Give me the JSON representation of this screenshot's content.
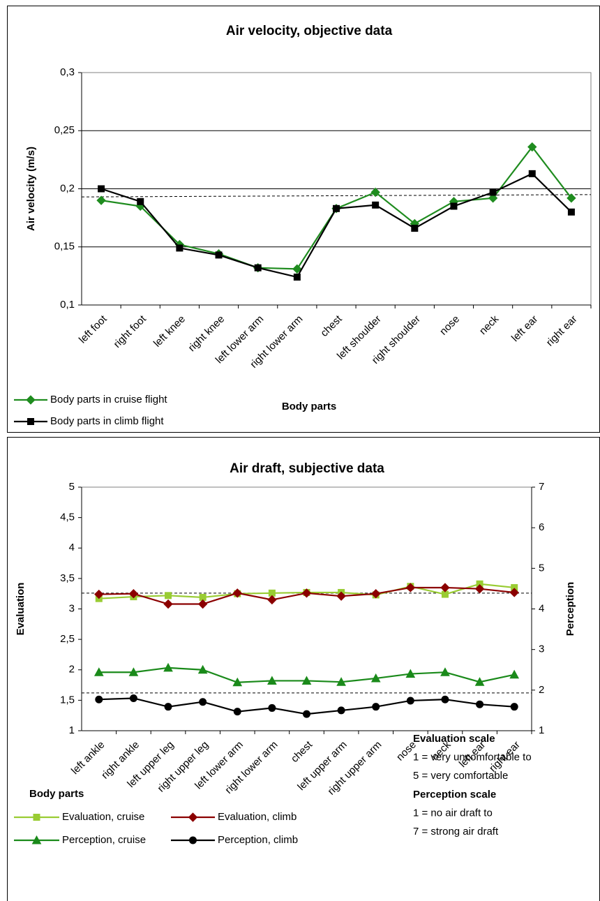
{
  "chart_data": [
    {
      "type": "line",
      "title": "Air velocity, objective data",
      "x_label": "Body parts",
      "y_label": "Air velocity (m/s)",
      "categories": [
        "left foot",
        "right foot",
        "left knee",
        "right knee",
        "left lower arm",
        "right lower arm",
        "chest",
        "left shoulder",
        "right shoulder",
        "nose",
        "neck",
        "left ear",
        "right ear"
      ],
      "series": [
        {
          "name": "Body parts in cruise flight",
          "color": "#1f8c1f",
          "marker": "diamond",
          "values": [
            0.19,
            0.185,
            0.152,
            0.144,
            0.132,
            0.131,
            0.183,
            0.197,
            0.17,
            0.189,
            0.192,
            0.236,
            0.192
          ]
        },
        {
          "name": "Body parts in climb flight",
          "color": "#000000",
          "marker": "square",
          "values": [
            0.2,
            0.189,
            0.149,
            0.143,
            0.132,
            0.124,
            0.183,
            0.186,
            0.166,
            0.185,
            0.197,
            0.213,
            0.18
          ]
        }
      ],
      "ylim": [
        0.1,
        0.3
      ],
      "yticks": [
        {
          "value": 0.1,
          "label": "0,1"
        },
        {
          "value": 0.15,
          "label": "0,15"
        },
        {
          "value": 0.2,
          "label": "0,2"
        },
        {
          "value": 0.25,
          "label": "0,25"
        },
        {
          "value": 0.3,
          "label": "0,3"
        }
      ],
      "grid": true,
      "reference_lines": [
        {
          "axis": "y",
          "values": [
            0.193,
            0.195
          ]
        }
      ]
    },
    {
      "type": "line",
      "title": "Air draft, subjective data",
      "x_label": "Body parts",
      "y_label": "Evaluation",
      "y2_label": "Perception",
      "categories": [
        "left ankle",
        "right ankle",
        "left upper leg",
        "right upper leg",
        "left lower arm",
        "right lower arm",
        "chest",
        "left upper arm",
        "right upper arm",
        "nose",
        "neck",
        "left ear",
        "right ear"
      ],
      "series": [
        {
          "name": "Evaluation, cruise",
          "color": "#99cc33",
          "marker": "square",
          "values": [
            3.17,
            3.2,
            3.22,
            3.19,
            3.25,
            3.26,
            3.27,
            3.27,
            3.23,
            3.37,
            3.24,
            3.41,
            3.35
          ]
        },
        {
          "name": "Evaluation, climb",
          "color": "#8b0000",
          "marker": "diamond",
          "values": [
            3.24,
            3.25,
            3.08,
            3.08,
            3.26,
            3.15,
            3.26,
            3.21,
            3.25,
            3.35,
            3.35,
            3.33,
            3.27
          ]
        },
        {
          "name": "Perception, cruise",
          "color": "#1a8a1a",
          "marker": "triangle",
          "axis": "y2",
          "values": [
            2.44,
            2.44,
            2.55,
            2.5,
            2.19,
            2.23,
            2.23,
            2.2,
            2.29,
            2.4,
            2.44,
            2.2,
            2.38
          ]
        },
        {
          "name": "Perception, climb",
          "color": "#000000",
          "marker": "circle",
          "axis": "y2",
          "values": [
            1.77,
            1.8,
            1.59,
            1.71,
            1.47,
            1.56,
            1.41,
            1.5,
            1.59,
            1.74,
            1.77,
            1.65,
            1.59
          ]
        }
      ],
      "ylim": [
        1,
        5
      ],
      "yticks": [
        1,
        {
          "value": 1.5,
          "label": "1,5"
        },
        2,
        {
          "value": 2.5,
          "label": "2,5"
        },
        3,
        {
          "value": 3.5,
          "label": "3,5"
        },
        4,
        {
          "value": 4.5,
          "label": "4,5"
        },
        5
      ],
      "y2lim": [
        1,
        7
      ],
      "y2ticks": [
        1,
        2,
        3,
        4,
        5,
        6,
        7
      ],
      "grid": false,
      "reference_lines": [
        {
          "axis": "y",
          "values": [
            3.26,
            3.26
          ]
        },
        {
          "axis": "y2",
          "values": [
            1.93,
            1.93
          ]
        }
      ],
      "notes": [
        {
          "text": "Evaluation scale",
          "bold": true
        },
        {
          "text": "1 = very uncomfortable to",
          "bold": false
        },
        {
          "text": "5 = very comfortable",
          "bold": false
        },
        {
          "text": "Perception scale",
          "bold": true
        },
        {
          "text": "1 = no air draft to",
          "bold": false
        },
        {
          "text": "7 = strong air draft",
          "bold": false
        }
      ]
    }
  ]
}
